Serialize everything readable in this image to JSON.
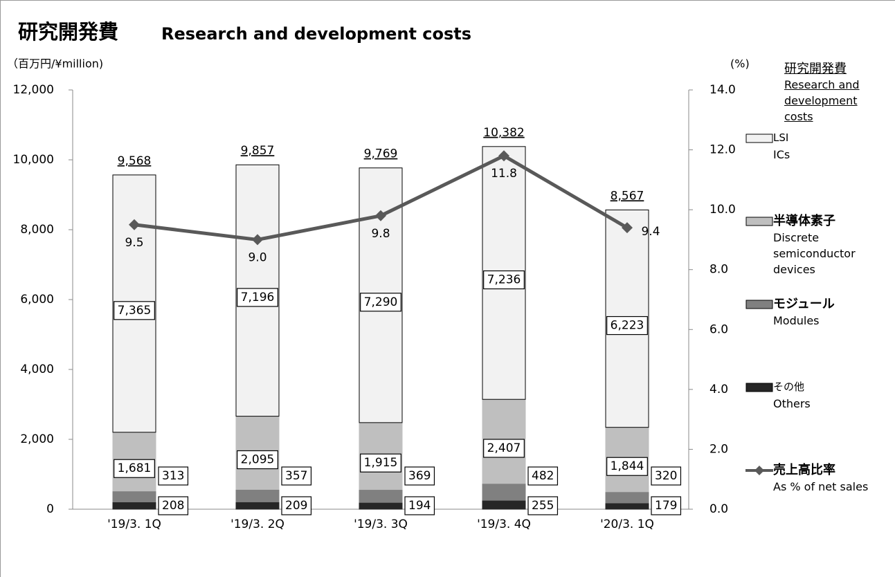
{
  "chart_data": {
    "type": "bar",
    "stacked": true,
    "title": "研究開発費",
    "title_en": "Research and development costs",
    "y_label": "（百万円/¥million)",
    "y2_label": "(%)",
    "legend_title": "研究開発費",
    "legend_title_en": "Research and development costs",
    "categories": [
      "'19/3. 1Q",
      "'19/3. 2Q",
      "'19/3. 3Q",
      "'19/3. 4Q",
      "'20/3. 1Q"
    ],
    "series": [
      {
        "name": "その他",
        "name_en": "Others",
        "color": "#262626",
        "values": [
          208,
          209,
          194,
          255,
          179
        ]
      },
      {
        "name": "モジュール",
        "name_en": "Modules",
        "color": "#808080",
        "values": [
          313,
          357,
          369,
          482,
          320
        ]
      },
      {
        "name": "半導体素子",
        "name_en": "Discrete semiconductor devices",
        "color": "#bfbfbf",
        "values": [
          1681,
          2095,
          1915,
          2407,
          1844
        ],
        "value_labels": [
          "1,681",
          "2,095",
          "1,915",
          "2,407",
          "1,844"
        ]
      },
      {
        "name": "LSI",
        "name_en": "ICs",
        "color": "#f2f2f2",
        "values": [
          7365,
          7196,
          7290,
          7236,
          6223
        ],
        "value_labels": [
          "7,365",
          "7,196",
          "7,290",
          "7,236",
          "6,223"
        ]
      },
      {
        "name": "売上高比率",
        "name_en": "As % of net sales",
        "type": "line",
        "axis": "y2",
        "color": "#595959",
        "values": [
          9.5,
          9.0,
          9.8,
          11.8,
          9.4
        ],
        "value_labels": [
          "9.5",
          "9.0",
          "9.8",
          "11.8",
          "9.4"
        ]
      }
    ],
    "totals": [
      9568,
      9857,
      9769,
      10382,
      8567
    ],
    "total_labels": [
      "9,568",
      "9,857",
      "9,769",
      "10,382",
      "8,567"
    ],
    "ylim": [
      0,
      12000
    ],
    "yticks": [
      0,
      {
        "value": 2000,
        "label": "2,000"
      },
      {
        "value": 4000,
        "label": "4,000"
      },
      {
        "value": 6000,
        "label": "6,000"
      },
      {
        "value": 8000,
        "label": "8,000"
      },
      {
        "value": 10000,
        "label": "10,000"
      },
      {
        "value": 12000,
        "label": "12,000"
      }
    ],
    "y2lim": [
      0,
      14
    ],
    "y2ticks": [
      {
        "value": 0,
        "label": "0.0"
      },
      {
        "value": 2,
        "label": "2.0"
      },
      {
        "value": 4,
        "label": "4.0"
      },
      {
        "value": 6,
        "label": "6.0"
      },
      {
        "value": 8,
        "label": "8.0"
      },
      {
        "value": 10,
        "label": "10.0"
      },
      {
        "value": 12,
        "label": "12.0"
      },
      {
        "value": 14,
        "label": "14.0"
      }
    ],
    "legend": "right"
  }
}
